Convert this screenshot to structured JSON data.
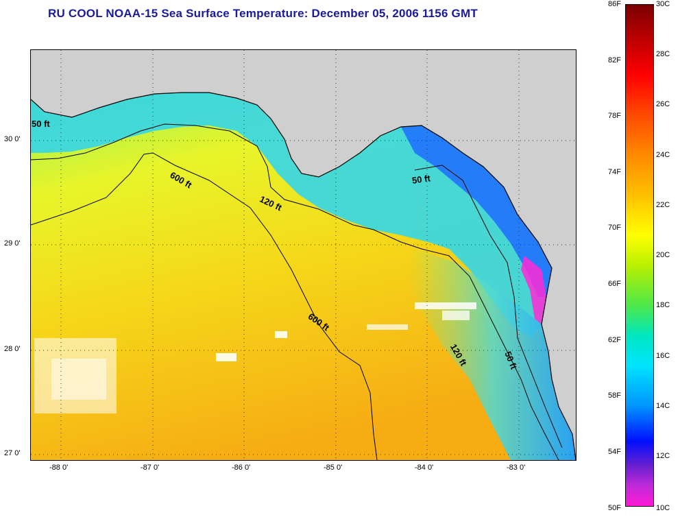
{
  "title": "RU COOL  NOAA-15  Sea Surface Temperature:  December 05, 2006 1156 GMT",
  "colors": {
    "land": "#cfcfcf",
    "title": "#1a1a9c",
    "cold_shelf": "#1e9cff",
    "cool": "#35d6e8",
    "mid": "#c9f24a",
    "warm": "#f5d91a",
    "warmest": "#f7b214"
  },
  "lat_labels": [
    "30 0'",
    "29 0'",
    "28 0'",
    "27 0'"
  ],
  "lon_labels": [
    "-88 0'",
    "-87 0'",
    "-86 0'",
    "-85 0'",
    "-84 0'",
    "-83 0'"
  ],
  "depth_contours": [
    "50 ft",
    "600 ft",
    "120 ft",
    "50 ft",
    "600 ft",
    "120 ft",
    "50 ft"
  ],
  "colorbar": {
    "fahrenheit": [
      "86F",
      "82F",
      "78F",
      "74F",
      "70F",
      "66F",
      "62F",
      "58F",
      "54F",
      "50F"
    ],
    "celsius": [
      "30C",
      "28C",
      "26C",
      "24C",
      "22C",
      "20C",
      "18C",
      "16C",
      "14C",
      "12C",
      "10C"
    ]
  }
}
